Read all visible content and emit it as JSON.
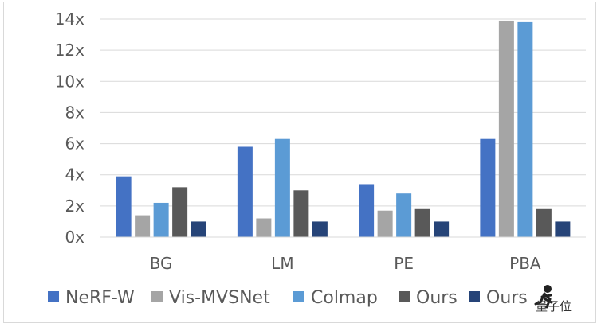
{
  "chart_data": {
    "type": "bar",
    "title": "",
    "xlabel": "",
    "ylabel": "",
    "categories": [
      "BG",
      "LM",
      "PE",
      "PBA"
    ],
    "ylim": [
      0,
      14
    ],
    "y_ticks": [
      "0x",
      "2x",
      "4x",
      "6x",
      "8x",
      "10x",
      "12x",
      "14x"
    ],
    "y_tick_values": [
      0,
      2,
      4,
      6,
      8,
      10,
      12,
      14
    ],
    "grid": true,
    "legend_position": "bottom",
    "series": [
      {
        "name": "NeRF-W",
        "color": "#4472C4",
        "values": [
          3.9,
          5.8,
          3.4,
          6.3
        ]
      },
      {
        "name": "Vis-MVSNet",
        "color": "#A5A5A5",
        "values": [
          1.4,
          1.2,
          1.7,
          13.9
        ]
      },
      {
        "name": "Colmap",
        "color": "#5B9BD5",
        "values": [
          2.2,
          6.3,
          2.8,
          13.8
        ]
      },
      {
        "name": "Ours",
        "color": "#595959",
        "values": [
          3.2,
          3.0,
          1.8,
          1.8
        ]
      },
      {
        "name": "Ours",
        "color": "#264478",
        "values": [
          1.0,
          1.0,
          1.0,
          1.0
        ]
      }
    ]
  },
  "watermark": {
    "icon": "runner-icon",
    "text": "量子位"
  }
}
